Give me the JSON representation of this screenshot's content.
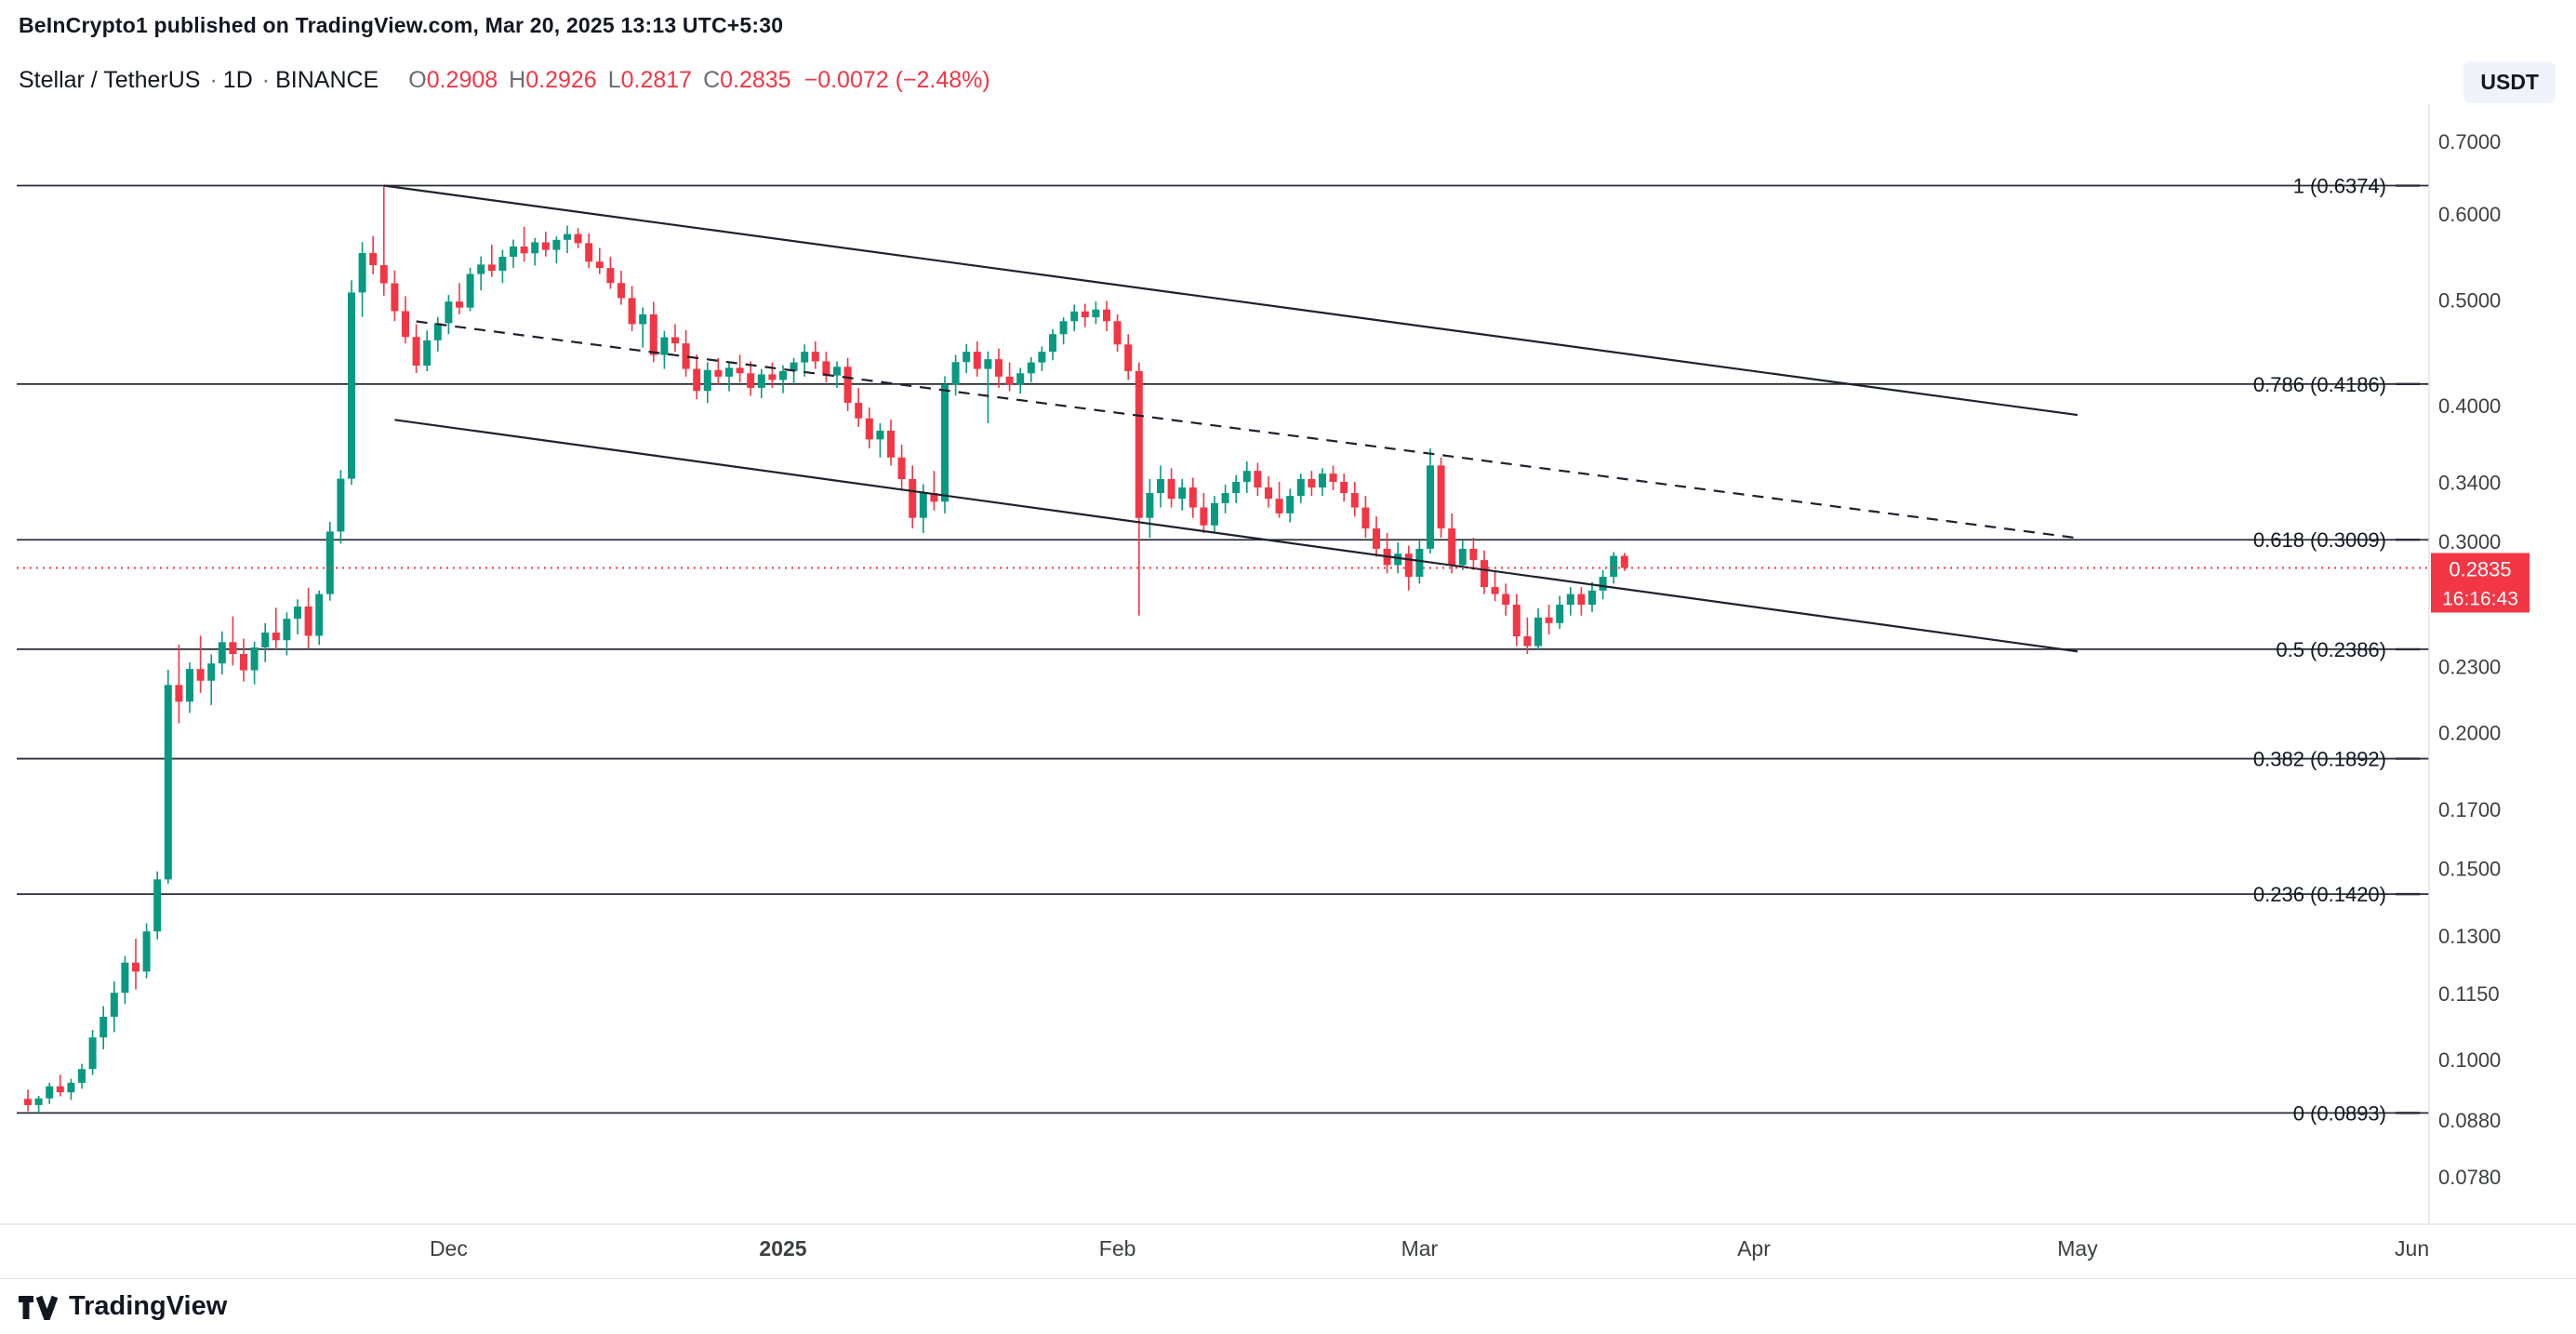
{
  "header": {
    "published_line": "BeInCrypto1 published on TradingView.com, Mar 20, 2025 13:13 UTC+5:30"
  },
  "legend": {
    "symbol": "Stellar / TetherUS",
    "separator": "·",
    "interval": "1D",
    "exchange": "BINANCE",
    "ohlc": {
      "o_label": "O",
      "o": "0.2908",
      "h_label": "H",
      "h": "0.2926",
      "l_label": "L",
      "l": "0.2817",
      "c_label": "C",
      "c": "0.2835",
      "change": "−0.0072 (−2.48%)"
    }
  },
  "currency_button": {
    "label": "USDT"
  },
  "price_label": {
    "value": "0.2835",
    "countdown": "16:16:43"
  },
  "footer": {
    "brand": "TradingView"
  },
  "colors": {
    "up": "#089981",
    "down": "#F23645",
    "drawing": "#1E222D",
    "fib_line": "#2A2E39",
    "text": "#131722",
    "axis_text": "#3C4043",
    "border": "#E0E3EB"
  },
  "chart_data": {
    "type": "candlestick",
    "title": "Stellar / TetherUS · 1D · BINANCE",
    "symbol": "XLMUSDT",
    "interval": "1D",
    "scale": "log",
    "current_price": 0.2835,
    "current_candle": {
      "open": 0.2908,
      "high": 0.2926,
      "low": 0.2817,
      "close": 0.2835,
      "change": "−0.0072 (−2.48%)"
    },
    "y_axis": {
      "labels": [
        "0.7000",
        "0.6000",
        "0.5000",
        "0.4000",
        "0.3400",
        "0.3000",
        "0.2300",
        "0.2000",
        "0.1700",
        "0.1500",
        "0.1300",
        "0.1150",
        "0.1000",
        "0.0880",
        "0.0780"
      ]
    },
    "x_axis": {
      "labels": [
        {
          "label": "Dec",
          "day": 39,
          "bold": false
        },
        {
          "label": "2025",
          "day": 70,
          "bold": true
        },
        {
          "label": "Feb",
          "day": 101,
          "bold": false
        },
        {
          "label": "Mar",
          "day": 129,
          "bold": false
        },
        {
          "label": "Apr",
          "day": 160,
          "bold": false
        },
        {
          "label": "May",
          "day": 190,
          "bold": false
        },
        {
          "label": "Jun",
          "day": 221,
          "bold": false
        }
      ]
    },
    "fib_levels": [
      {
        "label": "1 (0.6374)",
        "level": 1,
        "price": 0.6374
      },
      {
        "label": "0.786 (0.4186)",
        "level": 0.786,
        "price": 0.4186
      },
      {
        "label": "0.618 (0.3009)",
        "level": 0.618,
        "price": 0.3009
      },
      {
        "label": "0.5 (0.2386)",
        "level": 0.5,
        "price": 0.2386
      },
      {
        "label": "0.382 (0.1892)",
        "level": 0.382,
        "price": 0.1892
      },
      {
        "label": "0.236 (0.1420)",
        "level": 0.236,
        "price": 0.142
      },
      {
        "label": "0 (0.0893)",
        "level": 0,
        "price": 0.0893
      }
    ],
    "trendlines": [
      {
        "d1": 33,
        "p1": 0.6374,
        "d2": 190,
        "p2": 0.392,
        "dashed": false
      },
      {
        "d1": 36,
        "p1": 0.478,
        "d2": 190,
        "p2": 0.302,
        "dashed": true
      },
      {
        "d1": 34,
        "p1": 0.388,
        "d2": 190,
        "p2": 0.2375,
        "dashed": false
      }
    ],
    "candles": [
      [
        0.092,
        0.0938,
        0.0896,
        0.0908
      ],
      [
        0.0908,
        0.0926,
        0.0893,
        0.0921
      ],
      [
        0.0921,
        0.0952,
        0.091,
        0.0945
      ],
      [
        0.0945,
        0.0968,
        0.0925,
        0.0933
      ],
      [
        0.0933,
        0.096,
        0.0918,
        0.0952
      ],
      [
        0.0952,
        0.0991,
        0.094,
        0.098
      ],
      [
        0.098,
        0.1065,
        0.0968,
        0.1048
      ],
      [
        0.1048,
        0.112,
        0.1022,
        0.1095
      ],
      [
        0.1095,
        0.118,
        0.106,
        0.1152
      ],
      [
        0.1152,
        0.1245,
        0.1125,
        0.1228
      ],
      [
        0.1228,
        0.1292,
        0.116,
        0.1205
      ],
      [
        0.1205,
        0.1335,
        0.1188,
        0.1312
      ],
      [
        0.1312,
        0.149,
        0.129,
        0.1465
      ],
      [
        0.1465,
        0.2285,
        0.1452,
        0.2212
      ],
      [
        0.2212,
        0.241,
        0.204,
        0.2135
      ],
      [
        0.2135,
        0.232,
        0.2085,
        0.2288
      ],
      [
        0.2288,
        0.2455,
        0.2175,
        0.2232
      ],
      [
        0.2232,
        0.236,
        0.212,
        0.2315
      ],
      [
        0.2315,
        0.2478,
        0.2262,
        0.2422
      ],
      [
        0.2422,
        0.2558,
        0.2305,
        0.2362
      ],
      [
        0.2362,
        0.244,
        0.2228,
        0.2282
      ],
      [
        0.2282,
        0.2425,
        0.2215,
        0.2395
      ],
      [
        0.2395,
        0.2522,
        0.2322,
        0.2472
      ],
      [
        0.2472,
        0.2605,
        0.2385,
        0.2432
      ],
      [
        0.2432,
        0.258,
        0.2355,
        0.2545
      ],
      [
        0.2545,
        0.2652,
        0.2462,
        0.2612
      ],
      [
        0.2612,
        0.2718,
        0.2388,
        0.2455
      ],
      [
        0.2455,
        0.2702,
        0.2408,
        0.2682
      ],
      [
        0.2682,
        0.3125,
        0.2645,
        0.3062
      ],
      [
        0.3062,
        0.3488,
        0.2985,
        0.3425
      ],
      [
        0.3425,
        0.5215,
        0.3382,
        0.5082
      ],
      [
        0.5082,
        0.5655,
        0.4825,
        0.5525
      ],
      [
        0.5525,
        0.5728,
        0.5282,
        0.5385
      ],
      [
        0.5385,
        0.6374,
        0.5048,
        0.5182
      ],
      [
        0.5182,
        0.5325,
        0.4782,
        0.4885
      ],
      [
        0.4885,
        0.5042,
        0.4562,
        0.4625
      ],
      [
        0.4625,
        0.4752,
        0.4285,
        0.4352
      ],
      [
        0.4352,
        0.4688,
        0.4302,
        0.4592
      ],
      [
        0.4592,
        0.4825,
        0.4485,
        0.4762
      ],
      [
        0.4762,
        0.5055,
        0.4652,
        0.4985
      ],
      [
        0.4985,
        0.5185,
        0.4852,
        0.4922
      ],
      [
        0.4922,
        0.5355,
        0.4885,
        0.5285
      ],
      [
        0.5285,
        0.5485,
        0.5105,
        0.5392
      ],
      [
        0.5392,
        0.5625,
        0.5252,
        0.5322
      ],
      [
        0.5322,
        0.5562,
        0.5185,
        0.5482
      ],
      [
        0.5482,
        0.5685,
        0.5355,
        0.5602
      ],
      [
        0.5602,
        0.5842,
        0.5425,
        0.5522
      ],
      [
        0.5522,
        0.5705,
        0.5382,
        0.5652
      ],
      [
        0.5652,
        0.5782,
        0.5485,
        0.5562
      ],
      [
        0.5562,
        0.5722,
        0.5405,
        0.5682
      ],
      [
        0.5682,
        0.5855,
        0.5525,
        0.5752
      ],
      [
        0.5752,
        0.5825,
        0.5582,
        0.5642
      ],
      [
        0.5642,
        0.5762,
        0.5352,
        0.5425
      ],
      [
        0.5425,
        0.5585,
        0.5285,
        0.5352
      ],
      [
        0.5352,
        0.5482,
        0.5122,
        0.5185
      ],
      [
        0.5185,
        0.5322,
        0.4952,
        0.5022
      ],
      [
        0.5022,
        0.5152,
        0.4682,
        0.4752
      ],
      [
        0.4752,
        0.4925,
        0.4522,
        0.4852
      ],
      [
        0.4852,
        0.4982,
        0.4385,
        0.4452
      ],
      [
        0.4452,
        0.4685,
        0.4322,
        0.4622
      ],
      [
        0.4622,
        0.4752,
        0.4482,
        0.4562
      ],
      [
        0.4562,
        0.4692,
        0.4252,
        0.4322
      ],
      [
        0.4322,
        0.4455,
        0.4052,
        0.4125
      ],
      [
        0.4125,
        0.4385,
        0.4022,
        0.4312
      ],
      [
        0.4312,
        0.4422,
        0.4182,
        0.4252
      ],
      [
        0.4252,
        0.4385,
        0.4122,
        0.4332
      ],
      [
        0.4332,
        0.4455,
        0.4202,
        0.4282
      ],
      [
        0.4282,
        0.4392,
        0.4082,
        0.4152
      ],
      [
        0.4152,
        0.4322,
        0.4062,
        0.4272
      ],
      [
        0.4272,
        0.4382,
        0.4152,
        0.4222
      ],
      [
        0.4222,
        0.4355,
        0.4105,
        0.4302
      ],
      [
        0.4302,
        0.4425,
        0.4185,
        0.4382
      ],
      [
        0.4382,
        0.4552,
        0.4252,
        0.4482
      ],
      [
        0.4482,
        0.4582,
        0.4322,
        0.4392
      ],
      [
        0.4392,
        0.4482,
        0.4202,
        0.4262
      ],
      [
        0.4262,
        0.4392,
        0.4152,
        0.4342
      ],
      [
        0.4342,
        0.4425,
        0.3952,
        0.4022
      ],
      [
        0.4022,
        0.4152,
        0.3822,
        0.3892
      ],
      [
        0.3892,
        0.3982,
        0.3652,
        0.3722
      ],
      [
        0.3722,
        0.3852,
        0.3582,
        0.3792
      ],
      [
        0.3792,
        0.3882,
        0.3522,
        0.3582
      ],
      [
        0.3582,
        0.3682,
        0.3352,
        0.3422
      ],
      [
        0.3422,
        0.3522,
        0.3082,
        0.3152
      ],
      [
        0.3152,
        0.3385,
        0.3052,
        0.3322
      ],
      [
        0.3322,
        0.3482,
        0.3202,
        0.3262
      ],
      [
        0.3262,
        0.4255,
        0.3182,
        0.4182
      ],
      [
        0.4182,
        0.4452,
        0.4085,
        0.4385
      ],
      [
        0.4385,
        0.4555,
        0.4285,
        0.4482
      ],
      [
        0.4482,
        0.4582,
        0.4252,
        0.4322
      ],
      [
        0.4322,
        0.4485,
        0.3852,
        0.4412
      ],
      [
        0.4412,
        0.4512,
        0.4152,
        0.4252
      ],
      [
        0.4252,
        0.4382,
        0.4122,
        0.4182
      ],
      [
        0.4182,
        0.4332,
        0.4102,
        0.4282
      ],
      [
        0.4282,
        0.4432,
        0.4202,
        0.4382
      ],
      [
        0.4382,
        0.4532,
        0.4302,
        0.4482
      ],
      [
        0.4482,
        0.4702,
        0.4402,
        0.4652
      ],
      [
        0.4652,
        0.4822,
        0.4552,
        0.4782
      ],
      [
        0.4782,
        0.4952,
        0.4682,
        0.4882
      ],
      [
        0.4882,
        0.4962,
        0.4722,
        0.4822
      ],
      [
        0.4822,
        0.4985,
        0.4752,
        0.4902
      ],
      [
        0.4902,
        0.4992,
        0.4682,
        0.4782
      ],
      [
        0.4782,
        0.4852,
        0.4482,
        0.4552
      ],
      [
        0.4552,
        0.4652,
        0.4222,
        0.4302
      ],
      [
        0.4302,
        0.4382,
        0.2562,
        0.3152
      ],
      [
        0.3152,
        0.3422,
        0.3022,
        0.3322
      ],
      [
        0.3322,
        0.3522,
        0.3222,
        0.3422
      ],
      [
        0.3422,
        0.3502,
        0.3222,
        0.3282
      ],
      [
        0.3282,
        0.3422,
        0.3202,
        0.3362
      ],
      [
        0.3362,
        0.3432,
        0.3152,
        0.3222
      ],
      [
        0.3222,
        0.3322,
        0.3052,
        0.3102
      ],
      [
        0.3102,
        0.3302,
        0.3052,
        0.3252
      ],
      [
        0.3252,
        0.3382,
        0.3182,
        0.3322
      ],
      [
        0.3322,
        0.3452,
        0.3252,
        0.3402
      ],
      [
        0.3402,
        0.3552,
        0.3322,
        0.3482
      ],
      [
        0.3482,
        0.3542,
        0.3302,
        0.3362
      ],
      [
        0.3362,
        0.3442,
        0.3222,
        0.3282
      ],
      [
        0.3282,
        0.3402,
        0.3152,
        0.3182
      ],
      [
        0.3182,
        0.3352,
        0.3122,
        0.3302
      ],
      [
        0.3302,
        0.3462,
        0.3252,
        0.3422
      ],
      [
        0.3422,
        0.3482,
        0.3302,
        0.3362
      ],
      [
        0.3362,
        0.3502,
        0.3302,
        0.3462
      ],
      [
        0.3462,
        0.3522,
        0.3342,
        0.3402
      ],
      [
        0.3402,
        0.3462,
        0.3262,
        0.3322
      ],
      [
        0.3322,
        0.3402,
        0.3162,
        0.3222
      ],
      [
        0.3222,
        0.3302,
        0.3022,
        0.3082
      ],
      [
        0.3082,
        0.3162,
        0.2902,
        0.2952
      ],
      [
        0.2952,
        0.3052,
        0.2802,
        0.2852
      ],
      [
        0.2852,
        0.2992,
        0.2802,
        0.2922
      ],
      [
        0.2922,
        0.2972,
        0.2702,
        0.2782
      ],
      [
        0.2782,
        0.3002,
        0.2742,
        0.2952
      ],
      [
        0.2952,
        0.3652,
        0.2922,
        0.3522
      ],
      [
        0.3522,
        0.3582,
        0.3022,
        0.3082
      ],
      [
        0.3082,
        0.3182,
        0.2802,
        0.2852
      ],
      [
        0.2852,
        0.3002,
        0.2822,
        0.2952
      ],
      [
        0.2952,
        0.3022,
        0.2822,
        0.2882
      ],
      [
        0.2882,
        0.2942,
        0.2682,
        0.2722
      ],
      [
        0.2722,
        0.2822,
        0.2642,
        0.2682
      ],
      [
        0.2682,
        0.2742,
        0.2562,
        0.2622
      ],
      [
        0.2622,
        0.2682,
        0.2402,
        0.2452
      ],
      [
        0.2452,
        0.2552,
        0.2362,
        0.2402
      ],
      [
        0.2402,
        0.2602,
        0.2382,
        0.2552
      ],
      [
        0.2552,
        0.2622,
        0.2462,
        0.2522
      ],
      [
        0.2522,
        0.2672,
        0.2492,
        0.2622
      ],
      [
        0.2622,
        0.2722,
        0.2562,
        0.2682
      ],
      [
        0.2682,
        0.2722,
        0.2562,
        0.2622
      ],
      [
        0.2622,
        0.2752,
        0.2582,
        0.2702
      ],
      [
        0.2702,
        0.2822,
        0.2652,
        0.2782
      ],
      [
        0.2782,
        0.2932,
        0.2742,
        0.2908
      ],
      [
        0.2908,
        0.2926,
        0.2817,
        0.2835
      ]
    ]
  }
}
